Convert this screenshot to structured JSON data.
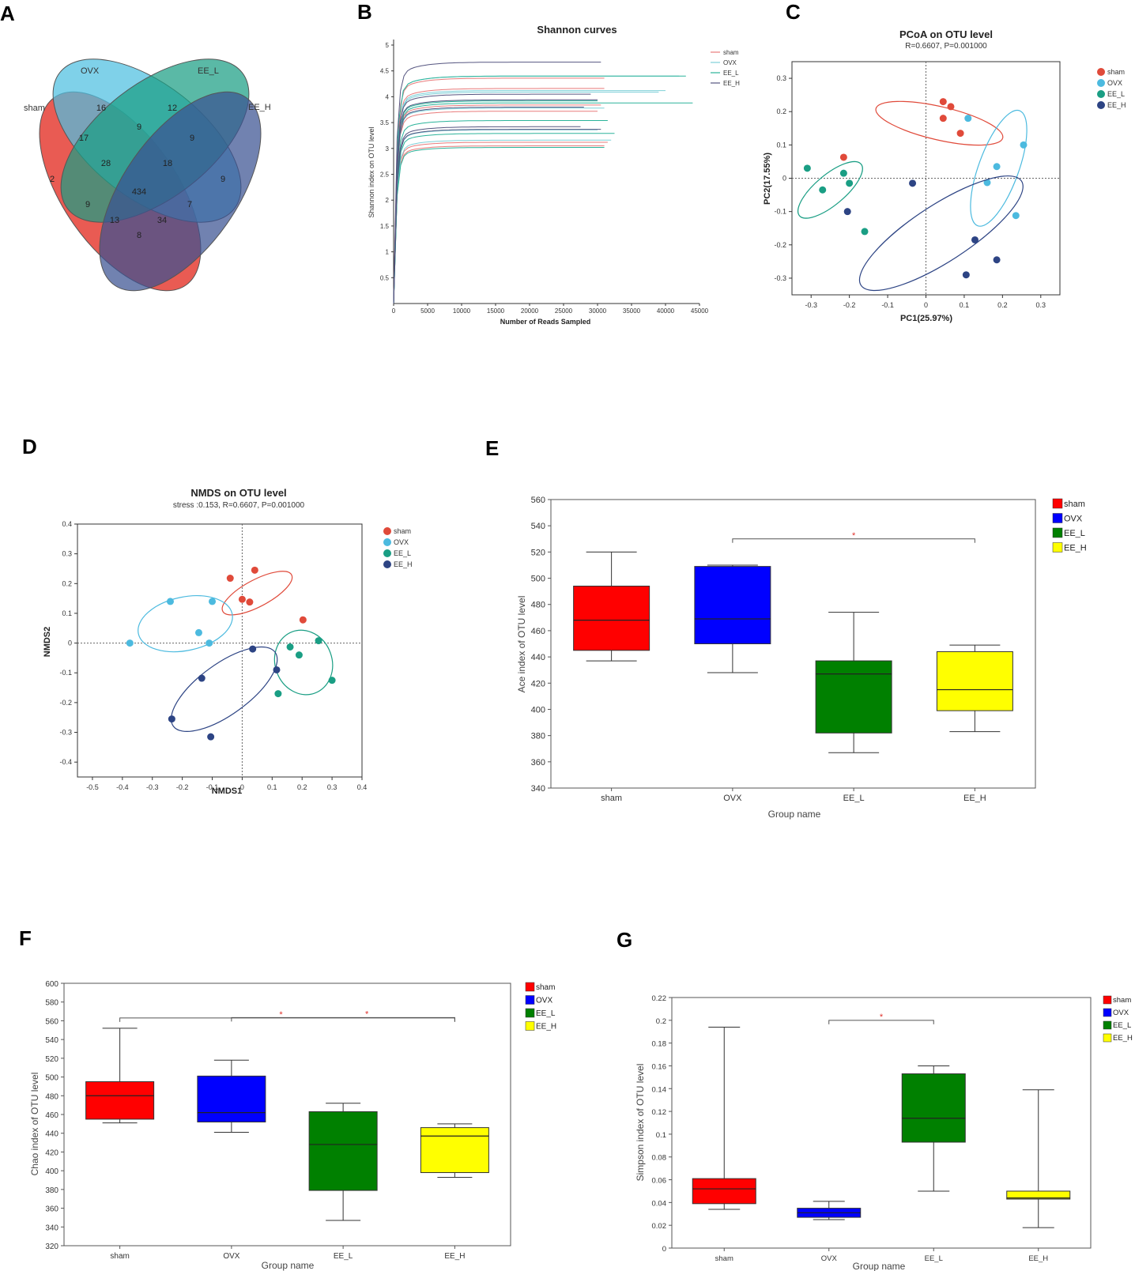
{
  "panel_labels": [
    "A",
    "B",
    "C",
    "D",
    "E",
    "F",
    "G"
  ],
  "chart_data": [
    {
      "panel": "A",
      "type": "venn",
      "sets": [
        "sham",
        "OVX",
        "EE_L",
        "EE_H"
      ],
      "colors": [
        "#e8524a",
        "#4dbfe0",
        "#1a9e84",
        "#3a5291"
      ],
      "region_counts": [
        {
          "label": "16",
          "key": "ovx_only"
        },
        {
          "label": "12",
          "key": "eel_only"
        },
        {
          "label": "9",
          "key": "ovx_eel"
        },
        {
          "label": "9",
          "key": "eel_eeh"
        },
        {
          "label": "17",
          "key": "sham_ovx"
        },
        {
          "label": "28",
          "key": "sham_ovx_eel"
        },
        {
          "label": "18",
          "key": "ovx_eel_eeh"
        },
        {
          "label": "9",
          "key": "eeh_only"
        },
        {
          "label": "2",
          "key": "sham_only"
        },
        {
          "label": "434",
          "key": "all"
        },
        {
          "label": "9",
          "key": "sham_eel"
        },
        {
          "label": "7",
          "key": "ovx_eeh"
        },
        {
          "label": "13",
          "key": "sham_eel_eeh"
        },
        {
          "label": "34",
          "key": "sham_ovx_eeh"
        },
        {
          "label": "8",
          "key": "sham_eeh"
        }
      ]
    },
    {
      "panel": "B",
      "type": "line",
      "title": "Shannon curves",
      "xlabel": "Number of Reads Sampled",
      "ylabel": "Shannon index on OTU level",
      "xlim": [
        0,
        45000
      ],
      "ylim": [
        0,
        5
      ],
      "xticks": [
        "0",
        "5000",
        "10000",
        "15000",
        "20000",
        "25000",
        "30000",
        "35000",
        "40000",
        "45000"
      ],
      "yticks": [
        "0.5",
        "1",
        "1.5",
        "2",
        "2.5",
        "3",
        "3.5",
        "4",
        "4.5",
        "5"
      ],
      "legend": [
        "sham",
        "OVX",
        "EE_L",
        "EE_H"
      ],
      "series_colors": [
        "#e87a7a",
        "#7fd0d8",
        "#2bb39a",
        "#555580"
      ],
      "curves": [
        {
          "group": "sham",
          "plateau": 4.16,
          "end": 31000
        },
        {
          "group": "sham",
          "plateau": 3.72,
          "end": 30000
        },
        {
          "group": "sham",
          "plateau": 3.12,
          "end": 31500
        },
        {
          "group": "sham",
          "plateau": 3.05,
          "end": 31000
        },
        {
          "group": "sham",
          "plateau": 3.84,
          "end": 30500
        },
        {
          "group": "sham",
          "plateau": 4.36,
          "end": 31000
        },
        {
          "group": "OVX",
          "plateau": 4.4,
          "end": 42000
        },
        {
          "group": "OVX",
          "plateau": 4.09,
          "end": 39000
        },
        {
          "group": "OVX",
          "plateau": 3.78,
          "end": 31000
        },
        {
          "group": "OVX",
          "plateau": 3.36,
          "end": 30000
        },
        {
          "group": "OVX",
          "plateau": 3.16,
          "end": 32000
        },
        {
          "group": "OVX",
          "plateau": 4.12,
          "end": 40000
        },
        {
          "group": "EE_L",
          "plateau": 4.4,
          "end": 43000
        },
        {
          "group": "EE_L",
          "plateau": 3.88,
          "end": 44000
        },
        {
          "group": "EE_L",
          "plateau": 3.54,
          "end": 31500
        },
        {
          "group": "EE_L",
          "plateau": 3.29,
          "end": 32500
        },
        {
          "group": "EE_L",
          "plateau": 3.02,
          "end": 31000
        },
        {
          "group": "EE_L",
          "plateau": 3.92,
          "end": 30000
        },
        {
          "group": "EE_H",
          "plateau": 4.67,
          "end": 30500
        },
        {
          "group": "EE_H",
          "plateau": 3.94,
          "end": 30000
        },
        {
          "group": "EE_H",
          "plateau": 3.8,
          "end": 28000
        },
        {
          "group": "EE_H",
          "plateau": 3.42,
          "end": 27500
        },
        {
          "group": "EE_H",
          "plateau": 3.37,
          "end": 30500
        },
        {
          "group": "EE_H",
          "plateau": 4.05,
          "end": 29000
        }
      ]
    },
    {
      "panel": "C",
      "type": "scatter",
      "title": "PCoA on OTU level",
      "subtitle": "R=0.6607, P=0.001000",
      "xlabel": "PC1(25.97%)",
      "ylabel": "PC2(17.55%)",
      "xlim": [
        -0.35,
        0.35
      ],
      "ylim": [
        -0.35,
        0.35
      ],
      "xticks": [
        "-0.3",
        "-0.2",
        "-0.1",
        "0",
        "0.1",
        "0.2",
        "0.3"
      ],
      "yticks": [
        "0.3",
        "0.2",
        "0.1",
        "0",
        "-0.1",
        "-0.2",
        "-0.3"
      ],
      "legend": [
        "sham",
        "OVX",
        "EE_L",
        "EE_H"
      ],
      "series": [
        {
          "name": "sham",
          "color": "#e04a3a",
          "points": [
            [
              0.045,
              0.23
            ],
            [
              0.065,
              0.215
            ],
            [
              0.045,
              0.18
            ],
            [
              0.09,
              0.135
            ],
            [
              -0.215,
              0.063
            ]
          ],
          "ellipse": {
            "cx": 0.035,
            "cy": 0.165,
            "rx": 0.17,
            "ry": 0.05,
            "angle": 13
          }
        },
        {
          "name": "OVX",
          "color": "#4cbadf",
          "points": [
            [
              0.11,
              0.18
            ],
            [
              0.255,
              0.1
            ],
            [
              0.185,
              0.035
            ],
            [
              0.16,
              -0.013
            ],
            [
              0.235,
              -0.112
            ]
          ],
          "ellipse": {
            "cx": 0.19,
            "cy": 0.03,
            "rx": 0.16,
            "ry": 0.06,
            "angle": -70
          }
        },
        {
          "name": "EE_L",
          "color": "#1a9e84",
          "points": [
            [
              -0.31,
              0.03
            ],
            [
              -0.215,
              0.015
            ],
            [
              -0.2,
              -0.015
            ],
            [
              -0.27,
              -0.035
            ],
            [
              -0.16,
              -0.16
            ]
          ],
          "ellipse": {
            "cx": -0.25,
            "cy": -0.035,
            "rx": 0.105,
            "ry": 0.045,
            "angle": -40
          }
        },
        {
          "name": "EE_H",
          "color": "#2d4484",
          "points": [
            [
              -0.035,
              -0.015
            ],
            [
              -0.205,
              -0.1
            ],
            [
              0.128,
              -0.185
            ],
            [
              0.185,
              -0.245
            ],
            [
              0.105,
              -0.29
            ]
          ],
          "ellipse": {
            "cx": 0.04,
            "cy": -0.165,
            "rx": 0.25,
            "ry": 0.085,
            "angle": -33
          }
        }
      ]
    },
    {
      "panel": "D",
      "type": "scatter",
      "title": "NMDS on OTU level",
      "subtitle": "stress :0.153, R=0.6607, P=0.001000",
      "xlabel": "NMDS1",
      "ylabel": "NMDS2",
      "xlim": [
        -0.55,
        0.4
      ],
      "ylim": [
        -0.45,
        0.4
      ],
      "xticks": [
        "-0.5",
        "-0.4",
        "-0.3",
        "-0.2",
        "-0.1",
        "0",
        "0.1",
        "0.2",
        "0.3",
        "0.4"
      ],
      "yticks": [
        "0.4",
        "0.3",
        "0.2",
        "0.1",
        "0",
        "-0.1",
        "-0.2",
        "-0.3",
        "-0.4"
      ],
      "legend": [
        "sham",
        "OVX",
        "EE_L",
        "EE_H"
      ],
      "series": [
        {
          "name": "sham",
          "color": "#e04a3a",
          "points": [
            [
              -0.04,
              0.218
            ],
            [
              0.042,
              0.245
            ],
            [
              0.0,
              0.147
            ],
            [
              0.025,
              0.138
            ],
            [
              0.203,
              0.078
            ]
          ],
          "ellipse": {
            "cx": 0.05,
            "cy": 0.168,
            "rx": 0.13,
            "ry": 0.045,
            "angle": -28
          }
        },
        {
          "name": "OVX",
          "color": "#4cbadf",
          "points": [
            [
              -0.24,
              0.14
            ],
            [
              -0.1,
              0.14
            ],
            [
              -0.145,
              0.035
            ],
            [
              -0.11,
              0.0
            ],
            [
              -0.375,
              0.0
            ]
          ],
          "ellipse": {
            "cx": -0.19,
            "cy": 0.065,
            "rx": 0.16,
            "ry": 0.09,
            "angle": -12
          }
        },
        {
          "name": "EE_L",
          "color": "#1a9e84",
          "points": [
            [
              0.255,
              0.008
            ],
            [
              0.16,
              -0.013
            ],
            [
              0.19,
              -0.04
            ],
            [
              0.3,
              -0.125
            ],
            [
              0.12,
              -0.17
            ]
          ],
          "ellipse": {
            "cx": 0.205,
            "cy": -0.065,
            "rx": 0.095,
            "ry": 0.11,
            "angle": -20
          }
        },
        {
          "name": "EE_H",
          "color": "#2d4484",
          "points": [
            [
              0.035,
              -0.02
            ],
            [
              0.115,
              -0.09
            ],
            [
              -0.135,
              -0.118
            ],
            [
              -0.235,
              -0.255
            ],
            [
              -0.105,
              -0.315
            ]
          ],
          "ellipse": {
            "cx": -0.06,
            "cy": -0.155,
            "rx": 0.21,
            "ry": 0.085,
            "angle": -36
          }
        }
      ]
    },
    {
      "panel": "E",
      "type": "box",
      "xlabel": "Group name",
      "ylabel": "Ace index of OTU level",
      "ylim": [
        340,
        560
      ],
      "ystep": 20,
      "categories": [
        "sham",
        "OVX",
        "EE_L",
        "EE_H"
      ],
      "colors": [
        "#ff0000",
        "#0000ff",
        "#008000",
        "#ffff00"
      ],
      "legend": [
        "sham",
        "OVX",
        "EE_L",
        "EE_H"
      ],
      "boxes": [
        {
          "min": 437,
          "q1": 445,
          "median": 468,
          "q3": 494,
          "max": 520
        },
        {
          "min": 428,
          "q1": 450,
          "median": 469,
          "q3": 509,
          "max": 510
        },
        {
          "min": 367,
          "q1": 382,
          "median": 427,
          "q3": 437,
          "max": 474
        },
        {
          "min": 383,
          "q1": 399,
          "median": 415,
          "q3": 444,
          "max": 449
        }
      ],
      "significance": [
        {
          "from": 1,
          "to": 3,
          "level": 530,
          "mark": "*"
        }
      ]
    },
    {
      "panel": "F",
      "type": "box",
      "xlabel": "Group name",
      "ylabel": "Chao index of OTU level",
      "ylim": [
        320,
        600
      ],
      "ystep": 20,
      "categories": [
        "sham",
        "OVX",
        "EE_L",
        "EE_H"
      ],
      "colors": [
        "#ff0000",
        "#0000ff",
        "#008000",
        "#ffff00"
      ],
      "legend": [
        "sham",
        "OVX",
        "EE_L",
        "EE_H"
      ],
      "boxes": [
        {
          "min": 451,
          "q1": 455,
          "median": 480,
          "q3": 495,
          "max": 552
        },
        {
          "min": 441,
          "q1": 452,
          "median": 462,
          "q3": 501,
          "max": 518
        },
        {
          "min": 347,
          "q1": 379,
          "median": 428,
          "q3": 463,
          "max": 472
        },
        {
          "min": 393,
          "q1": 398,
          "median": 437,
          "q3": 446,
          "max": 450
        }
      ],
      "significance": [
        {
          "from": 0,
          "to": 3,
          "level": 563,
          "mark": "*"
        },
        {
          "from": 1,
          "to": 3,
          "level": 566,
          "mark": "*"
        }
      ]
    },
    {
      "panel": "G",
      "type": "box",
      "xlabel": "Group name",
      "ylabel": "Simpson index of OTU level",
      "ylim": [
        0,
        0.22
      ],
      "ystep": 0.02,
      "ytick_labels": [
        "0",
        "0.02",
        "0.04",
        "0.06",
        "0.08",
        "0.1",
        "0.12",
        "0.14",
        "0.16",
        "0.18",
        "0.2",
        "0.22"
      ],
      "categories": [
        "sham",
        "OVX",
        "EE_L",
        "EE_H"
      ],
      "colors": [
        "#ff0000",
        "#0000ff",
        "#008000",
        "#ffff00"
      ],
      "legend": [
        "sham",
        "OVX",
        "EE_L",
        "EE_H"
      ],
      "boxes": [
        {
          "min": 0.034,
          "q1": 0.039,
          "median": 0.052,
          "q3": 0.061,
          "max": 0.194
        },
        {
          "min": 0.025,
          "q1": 0.027,
          "median": 0.031,
          "q3": 0.035,
          "max": 0.041
        },
        {
          "min": 0.05,
          "q1": 0.093,
          "median": 0.114,
          "q3": 0.153,
          "max": 0.16
        },
        {
          "min": 0.018,
          "q1": 0.043,
          "median": 0.044,
          "q3": 0.05,
          "max": 0.139
        }
      ],
      "significance": [
        {
          "from": 1,
          "to": 2,
          "level": 0.2,
          "mark": "*"
        }
      ]
    }
  ]
}
